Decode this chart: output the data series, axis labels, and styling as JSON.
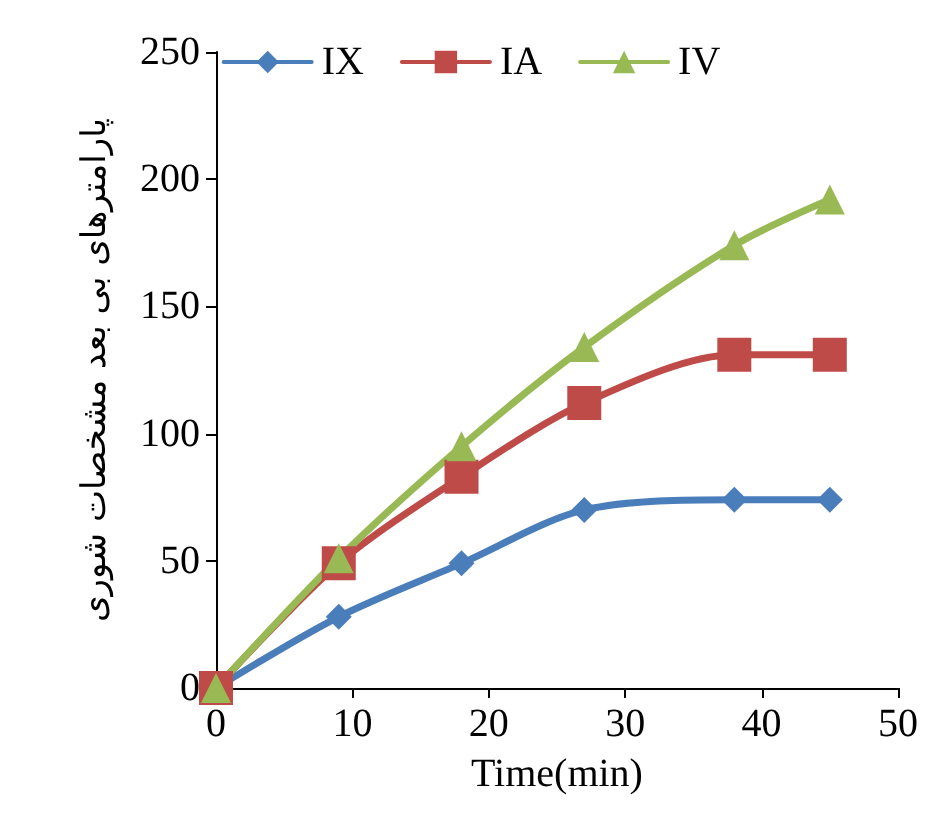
{
  "chart_data": {
    "type": "line",
    "xlabel": "Time(min)",
    "ylabel": "پارامترهای بی بعد مشخصات شوری",
    "xlim": [
      0,
      50
    ],
    "xticks": [
      0,
      10,
      20,
      30,
      40,
      50
    ],
    "ylim": [
      0,
      250
    ],
    "yticks": [
      0,
      50,
      100,
      150,
      200,
      250
    ],
    "grid": false,
    "legend": "top",
    "line_style": "solid",
    "series": [
      {
        "name": "IX",
        "color": "#4a7ebb",
        "marker": "diamond",
        "x": [
          0,
          9,
          18,
          27,
          38,
          45
        ],
        "values": [
          0,
          28,
          49,
          70,
          74,
          74
        ]
      },
      {
        "name": "IA",
        "color": "#be4b48",
        "marker": "square",
        "x": [
          0,
          9,
          18,
          27,
          38,
          45
        ],
        "values": [
          0,
          49,
          83,
          112,
          131,
          131
        ]
      },
      {
        "name": "IV",
        "color": "#98b954",
        "marker": "triangle",
        "x": [
          0,
          9,
          18,
          27,
          38,
          45
        ],
        "values": [
          0,
          51,
          95,
          134,
          174,
          192
        ]
      }
    ]
  }
}
